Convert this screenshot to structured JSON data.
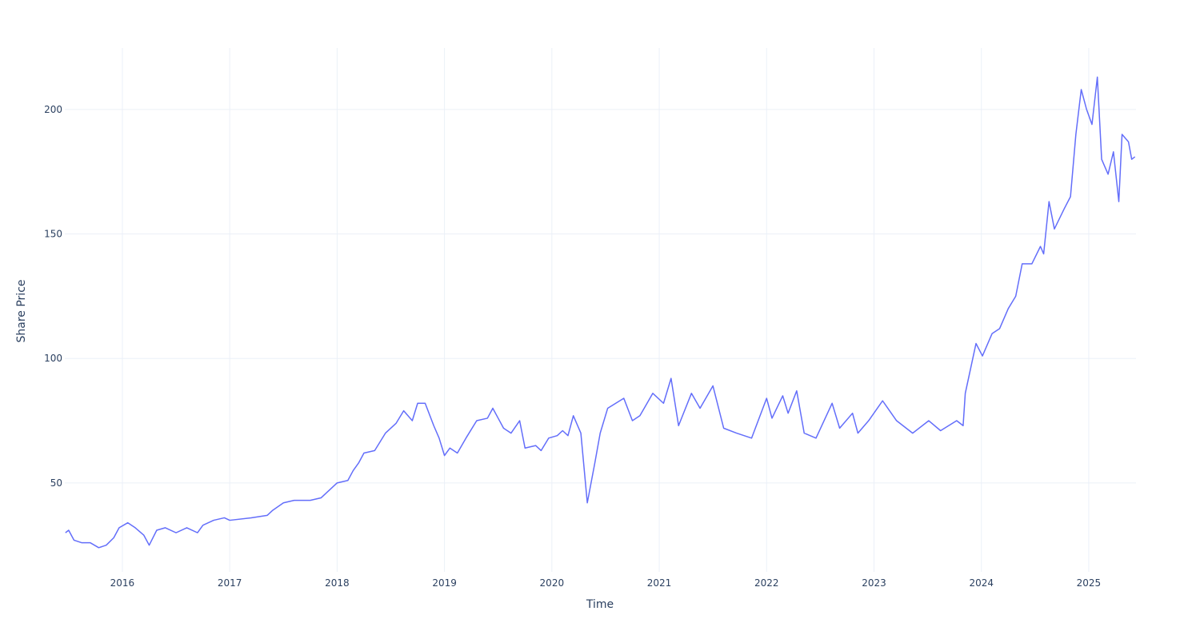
{
  "chart_data": {
    "type": "line",
    "x_label": "Time",
    "y_label": "Share Price",
    "xlim": [
      2015.464,
      2025.44
    ],
    "ylim": [
      14.3,
      224.7
    ],
    "xticks": [
      2016,
      2017,
      2018,
      2019,
      2020,
      2021,
      2022,
      2023,
      2024,
      2025
    ],
    "yticks": [
      50,
      100,
      150,
      200
    ],
    "grid": true,
    "series": [
      {
        "color": "#636efa",
        "x": [
          2015.47,
          2015.5,
          2015.55,
          2015.62,
          2015.7,
          2015.78,
          2015.85,
          2015.92,
          2015.97,
          2016.05,
          2016.12,
          2016.2,
          2016.25,
          2016.32,
          2016.4,
          2016.5,
          2016.6,
          2016.7,
          2016.75,
          2016.85,
          2016.95,
          2017.0,
          2017.2,
          2017.35,
          2017.4,
          2017.5,
          2017.6,
          2017.75,
          2017.85,
          2017.95,
          2018.0,
          2018.1,
          2018.15,
          2018.2,
          2018.25,
          2018.35,
          2018.45,
          2018.55,
          2018.62,
          2018.7,
          2018.75,
          2018.82,
          2018.9,
          2018.95,
          2019.0,
          2019.05,
          2019.12,
          2019.2,
          2019.3,
          2019.4,
          2019.45,
          2019.5,
          2019.55,
          2019.62,
          2019.7,
          2019.75,
          2019.85,
          2019.9,
          2019.97,
          2020.05,
          2020.1,
          2020.15,
          2020.2,
          2020.27,
          2020.33,
          2020.4,
          2020.45,
          2020.52,
          2020.67,
          2020.75,
          2020.82,
          2020.94,
          2021.04,
          2021.11,
          2021.18,
          2021.3,
          2021.38,
          2021.5,
          2021.6,
          2021.72,
          2021.86,
          2022.0,
          2022.05,
          2022.15,
          2022.2,
          2022.28,
          2022.35,
          2022.46,
          2022.61,
          2022.68,
          2022.8,
          2022.85,
          2022.95,
          2023.08,
          2023.21,
          2023.36,
          2023.51,
          2023.62,
          2023.77,
          2023.83,
          2023.85,
          2023.92,
          2023.95,
          2024.01,
          2024.1,
          2024.17,
          2024.25,
          2024.32,
          2024.38,
          2024.47,
          2024.55,
          2024.58,
          2024.63,
          2024.68,
          2024.77,
          2024.83,
          2024.88,
          2024.93,
          2024.98,
          2025.03,
          2025.08,
          2025.12,
          2025.18,
          2025.23,
          2025.28,
          2025.31,
          2025.37,
          2025.4,
          2025.43
        ],
        "values": [
          30,
          31,
          27,
          26,
          26,
          24,
          25,
          28,
          32,
          34,
          32,
          29,
          25,
          31,
          32,
          30,
          32,
          30,
          33,
          35,
          36,
          35,
          36,
          37,
          39,
          42,
          43,
          43,
          44,
          48,
          50,
          51,
          55,
          58,
          62,
          63,
          70,
          74,
          79,
          75,
          82,
          82,
          73,
          68,
          61,
          64,
          62,
          68,
          75,
          76,
          80,
          76,
          72,
          70,
          75,
          64,
          65,
          63,
          68,
          69,
          71,
          69,
          77,
          70,
          42,
          58,
          70,
          80,
          84,
          75,
          77,
          86,
          82,
          92,
          73,
          86,
          80,
          89,
          72,
          70,
          68,
          84,
          76,
          85,
          78,
          87,
          70,
          68,
          82,
          72,
          78,
          70,
          75,
          83,
          75,
          70,
          75,
          71,
          75,
          73,
          86,
          100,
          106,
          101,
          110,
          112,
          120,
          125,
          138,
          138,
          145,
          142,
          163,
          152,
          160,
          165,
          190,
          208,
          200,
          194,
          213,
          180,
          174,
          183,
          163,
          190,
          187,
          180,
          181
        ]
      }
    ]
  }
}
